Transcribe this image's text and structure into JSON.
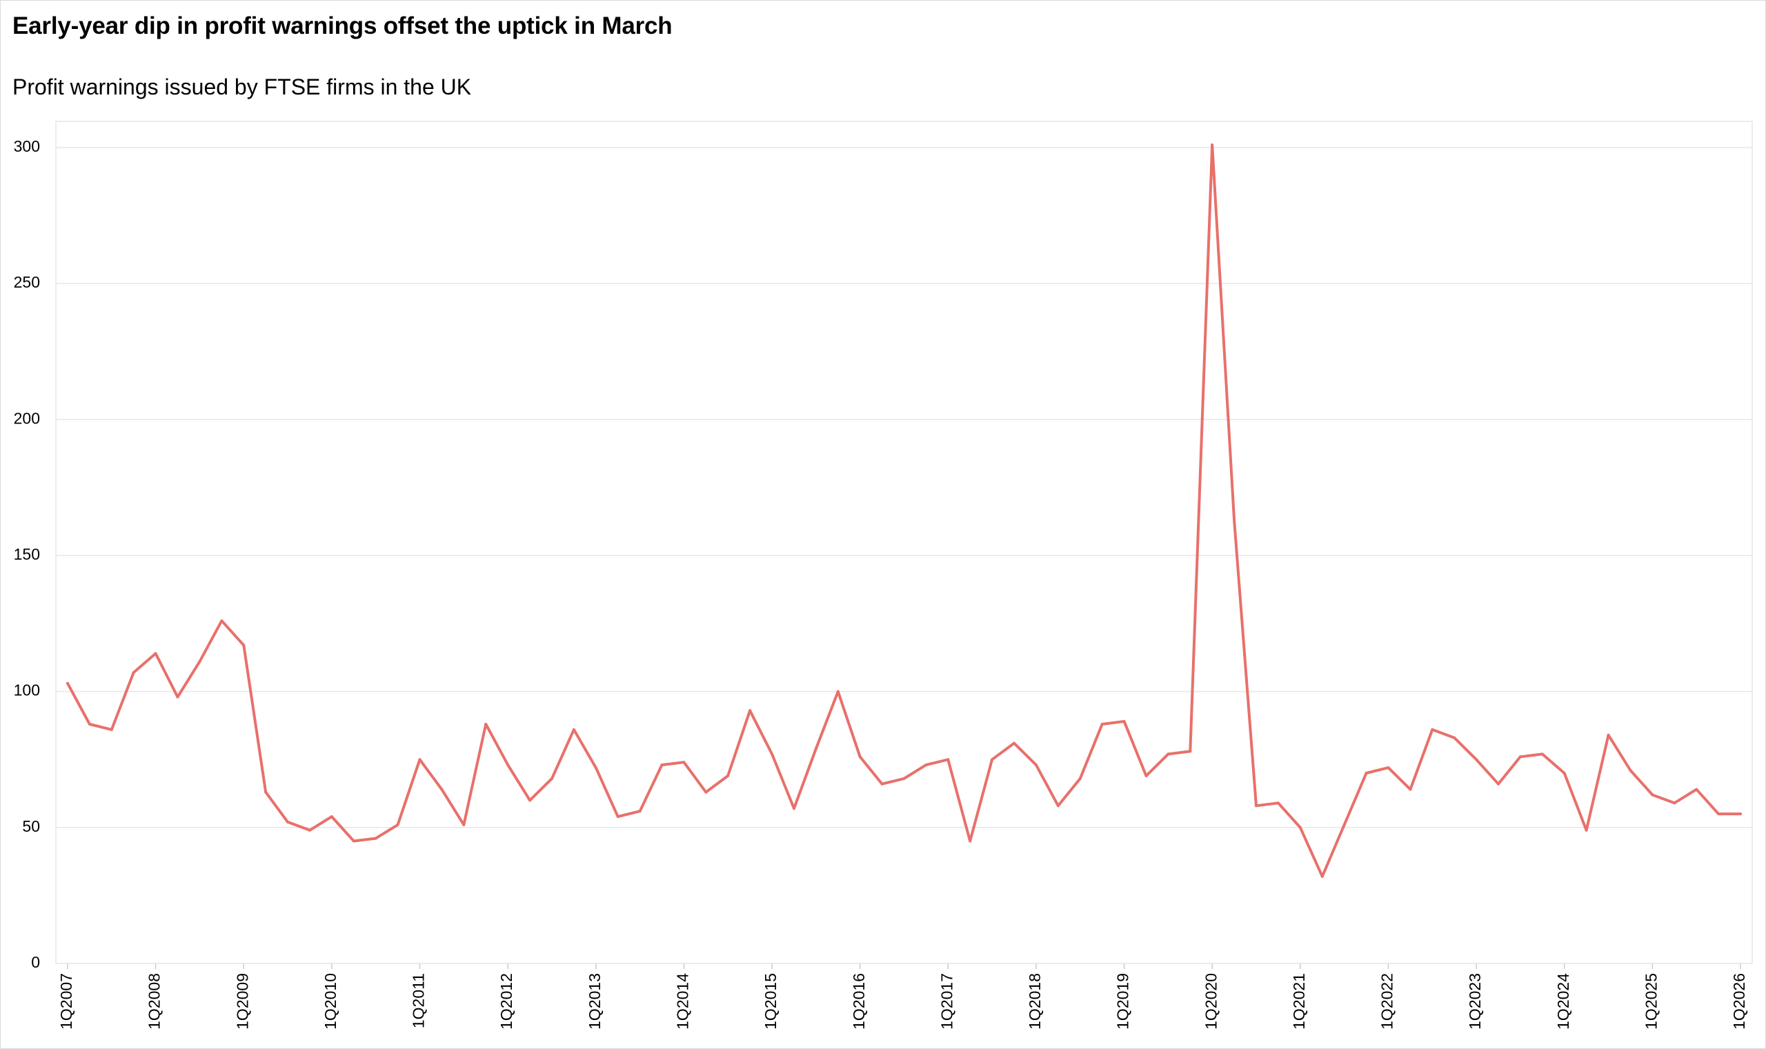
{
  "chart_data": {
    "type": "line",
    "title": "Early-year dip in profit warnings offset the uptick in March",
    "subtitle": "Profit warnings issued by FTSE firms in the UK",
    "xlabel": "",
    "ylabel": "",
    "ylim": [
      0,
      300
    ],
    "yticks": [
      0,
      50,
      100,
      150,
      200,
      250,
      300
    ],
    "grid": true,
    "legend": "none",
    "line_color": "#e8706b",
    "x_tick_labels": [
      "1Q2007",
      "1Q2008",
      "1Q2009",
      "1Q2010",
      "1Q2011",
      "1Q2012",
      "1Q2013",
      "1Q2014",
      "1Q2015",
      "1Q2016",
      "1Q2017",
      "1Q2018",
      "1Q2019",
      "1Q2020",
      "1Q2021",
      "1Q2022",
      "1Q2023",
      "1Q2024",
      "1Q2025",
      "1Q2026"
    ],
    "x": [
      "1Q2007",
      "2Q2007",
      "3Q2007",
      "4Q2007",
      "1Q2008",
      "2Q2008",
      "3Q2008",
      "4Q2008",
      "1Q2009",
      "2Q2009",
      "3Q2009",
      "4Q2009",
      "1Q2010",
      "2Q2010",
      "3Q2010",
      "4Q2010",
      "1Q2011",
      "2Q2011",
      "3Q2011",
      "4Q2011",
      "1Q2012",
      "2Q2012",
      "3Q2012",
      "4Q2012",
      "1Q2013",
      "2Q2013",
      "3Q2013",
      "4Q2013",
      "1Q2014",
      "2Q2014",
      "3Q2014",
      "4Q2014",
      "1Q2015",
      "2Q2015",
      "3Q2015",
      "4Q2015",
      "1Q2016",
      "2Q2016",
      "3Q2016",
      "4Q2016",
      "1Q2017",
      "2Q2017",
      "3Q2017",
      "4Q2017",
      "1Q2018",
      "2Q2018",
      "3Q2018",
      "4Q2018",
      "1Q2019",
      "2Q2019",
      "3Q2019",
      "4Q2019",
      "1Q2020",
      "2Q2020",
      "3Q2020",
      "4Q2020",
      "1Q2021",
      "2Q2021",
      "3Q2021",
      "4Q2021",
      "1Q2022",
      "2Q2022",
      "3Q2022",
      "4Q2022",
      "1Q2023",
      "2Q2023",
      "3Q2023",
      "4Q2023",
      "1Q2024",
      "2Q2024",
      "3Q2024",
      "4Q2024",
      "1Q2025",
      "2Q2025",
      "3Q2025",
      "4Q2025",
      "1Q2026"
    ],
    "values": [
      103,
      88,
      86,
      107,
      114,
      98,
      111,
      126,
      117,
      63,
      52,
      49,
      54,
      45,
      46,
      51,
      75,
      64,
      51,
      88,
      73,
      60,
      68,
      86,
      72,
      54,
      56,
      73,
      74,
      63,
      69,
      93,
      77,
      57,
      79,
      100,
      76,
      66,
      68,
      73,
      75,
      45,
      75,
      81,
      73,
      58,
      68,
      88,
      89,
      69,
      77,
      78,
      301,
      163,
      58,
      59,
      50,
      32,
      51,
      70,
      72,
      64,
      86,
      83,
      75,
      66,
      76,
      77,
      70,
      49,
      84,
      71,
      62,
      59,
      64,
      55,
      55
    ]
  }
}
